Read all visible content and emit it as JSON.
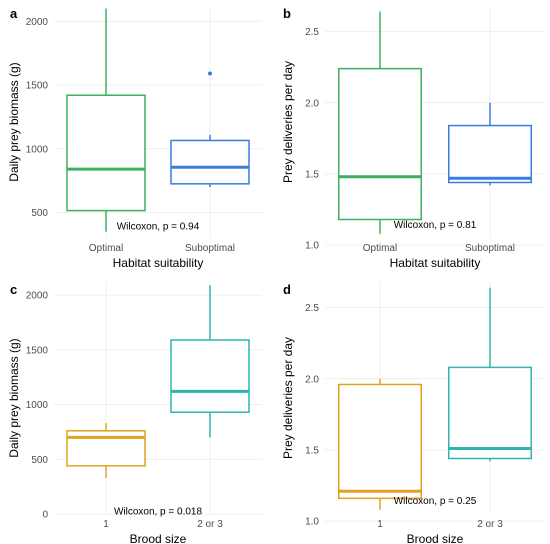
{
  "colors": {
    "optimal": "#3cb05c",
    "suboptimal": "#3a7ddf",
    "brood_1": "#e0a21f",
    "brood_2or3": "#2fb5ad"
  },
  "chart_data": [
    {
      "panel": "a",
      "type": "box",
      "xlabel": "Habitat suitability",
      "ylabel": "Daily prey biomass (g)",
      "categories": [
        "Optimal",
        "Suboptimal"
      ],
      "ylim": [
        300,
        2120
      ],
      "yticks": [
        500,
        1000,
        1500,
        2000
      ],
      "boxes": [
        {
          "category": "Optimal",
          "color": "#3cb05c",
          "min": 350,
          "q1": 515,
          "median": 840,
          "q3": 1420,
          "max": 2100,
          "outliers": []
        },
        {
          "category": "Suboptimal",
          "color": "#3a7ddf",
          "min": 700,
          "q1": 725,
          "median": 855,
          "q3": 1065,
          "max": 1110,
          "outliers": [
            1590
          ]
        }
      ],
      "annotation": "Wilcoxon, p = 0.94",
      "annotation_y": 400
    },
    {
      "panel": "b",
      "type": "box",
      "xlabel": "Habitat suitability",
      "ylabel": "Prey deliveries per day",
      "categories": [
        "Optimal",
        "Suboptimal"
      ],
      "ylim": [
        1.05,
        2.68
      ],
      "yticks": [
        1.0,
        1.5,
        2.0,
        2.5
      ],
      "tick_decimals": 1,
      "boxes": [
        {
          "category": "Optimal",
          "color": "#3cb05c",
          "min": 1.08,
          "q1": 1.18,
          "median": 1.48,
          "q3": 2.24,
          "max": 2.64,
          "outliers": []
        },
        {
          "category": "Suboptimal",
          "color": "#3a7ddf",
          "min": 1.42,
          "q1": 1.44,
          "median": 1.47,
          "q3": 1.84,
          "max": 2.0,
          "outliers": []
        }
      ],
      "annotation": "Wilcoxon, p = 0.81",
      "annotation_y": 1.15
    },
    {
      "panel": "c",
      "type": "box",
      "xlabel": "Brood size",
      "ylabel": "Daily prey biomass (g)",
      "categories": [
        "1",
        "2 or 3"
      ],
      "ylim": [
        0,
        2120
      ],
      "yticks": [
        0,
        500,
        1000,
        1500,
        2000
      ],
      "boxes": [
        {
          "category": "1",
          "color": "#e0a21f",
          "min": 330,
          "q1": 440,
          "median": 700,
          "q3": 760,
          "max": 830,
          "outliers": []
        },
        {
          "category": "2 or 3",
          "color": "#2fb5ad",
          "min": 700,
          "q1": 930,
          "median": 1120,
          "q3": 1590,
          "max": 2090,
          "outliers": []
        }
      ],
      "annotation": "Wilcoxon, p = 0.018",
      "annotation_y": 30
    },
    {
      "panel": "d",
      "type": "box",
      "xlabel": "Brood size",
      "ylabel": "Prey deliveries per day",
      "categories": [
        "1",
        "2 or 3"
      ],
      "ylim": [
        1.05,
        2.68
      ],
      "yticks": [
        1.0,
        1.5,
        2.0,
        2.5
      ],
      "tick_decimals": 1,
      "boxes": [
        {
          "category": "1",
          "color": "#e0a21f",
          "min": 1.08,
          "q1": 1.16,
          "median": 1.21,
          "q3": 1.96,
          "max": 2.0,
          "outliers": []
        },
        {
          "category": "2 or 3",
          "color": "#2fb5ad",
          "min": 1.42,
          "q1": 1.44,
          "median": 1.51,
          "q3": 2.08,
          "max": 2.64,
          "outliers": []
        }
      ],
      "annotation": "Wilcoxon, p = 0.25",
      "annotation_y": 1.15
    }
  ]
}
